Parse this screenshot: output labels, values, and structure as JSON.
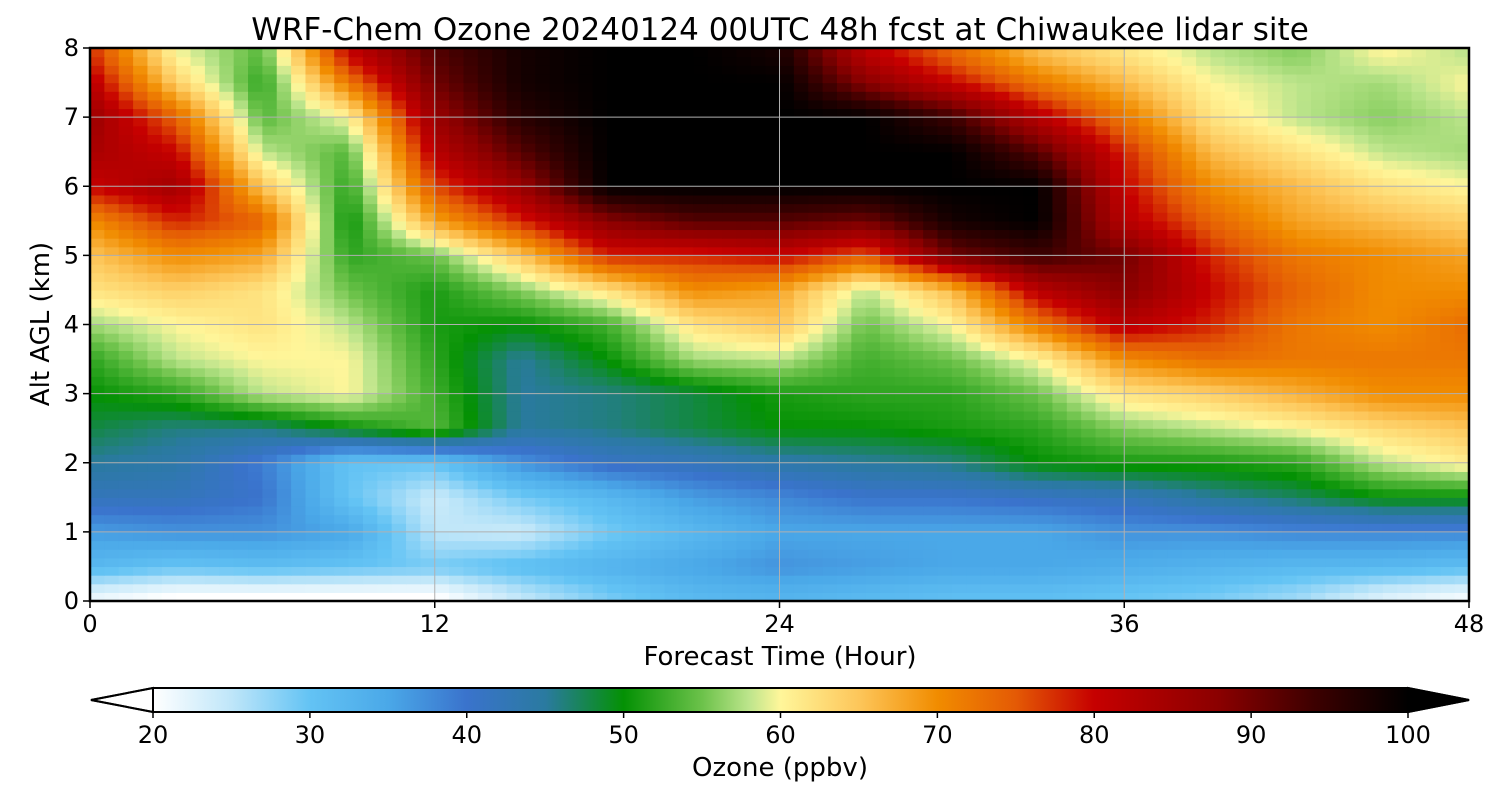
{
  "chart_data": {
    "type": "heatmap",
    "title": "WRF-Chem Ozone  20240124 00UTC 48h fcst at Chiwaukee lidar site",
    "xlabel": "Forecast Time (Hour)",
    "ylabel": "Alt AGL (km)",
    "xlim": [
      0,
      48
    ],
    "ylim": [
      0,
      8
    ],
    "x_ticks": [
      0,
      12,
      24,
      36,
      48
    ],
    "y_ticks": [
      0,
      1,
      2,
      3,
      4,
      5,
      6,
      7,
      8
    ],
    "grid": true,
    "colorbar": {
      "label": "Ozone  (ppbv)",
      "min": 20,
      "max": 100,
      "ticks": [
        20,
        30,
        40,
        50,
        60,
        70,
        80,
        90,
        100
      ],
      "extend": "both",
      "stops": [
        {
          "value": 20,
          "color": "#ffffff"
        },
        {
          "value": 25,
          "color": "#bfe6f9"
        },
        {
          "value": 30,
          "color": "#63c3f4"
        },
        {
          "value": 35,
          "color": "#4aa8e8"
        },
        {
          "value": 40,
          "color": "#3a73cc"
        },
        {
          "value": 45,
          "color": "#2a7aa0"
        },
        {
          "value": 50,
          "color": "#049104"
        },
        {
          "value": 55,
          "color": "#6cc24a"
        },
        {
          "value": 58,
          "color": "#bde58c"
        },
        {
          "value": 60,
          "color": "#fff69a"
        },
        {
          "value": 65,
          "color": "#fdc65a"
        },
        {
          "value": 70,
          "color": "#f18c00"
        },
        {
          "value": 75,
          "color": "#e45a05"
        },
        {
          "value": 80,
          "color": "#c60000"
        },
        {
          "value": 88,
          "color": "#8a0000"
        },
        {
          "value": 94,
          "color": "#3d0000"
        },
        {
          "value": 100,
          "color": "#000000"
        }
      ]
    },
    "x": [
      0,
      3,
      6,
      9,
      12,
      15,
      18,
      21,
      24,
      27,
      30,
      33,
      36,
      39,
      42,
      45,
      48
    ],
    "y": [
      0.1,
      0.5,
      1.0,
      1.5,
      2.0,
      2.5,
      3.0,
      3.5,
      4.0,
      4.5,
      5.0,
      5.5,
      6.0,
      6.5,
      7.0,
      7.5,
      7.9
    ],
    "z": [
      [
        22,
        20,
        20,
        20,
        20,
        25,
        29,
        32,
        33,
        32,
        31,
        31,
        30,
        29,
        27,
        23,
        21
      ],
      [
        32,
        30,
        31,
        30,
        29,
        31,
        33,
        35,
        37,
        36,
        35,
        35,
        34,
        33,
        32,
        32,
        31
      ],
      [
        36,
        37,
        37,
        35,
        25,
        24,
        29,
        32,
        35,
        35,
        35,
        35,
        37,
        37,
        38,
        38,
        38
      ],
      [
        42,
        42,
        40,
        30,
        24,
        29,
        32,
        36,
        38,
        40,
        40,
        41,
        42,
        45,
        47,
        50,
        50
      ],
      [
        45,
        44,
        39,
        30,
        30,
        37,
        41,
        42,
        44,
        45,
        46,
        50,
        51,
        51,
        52,
        58,
        61
      ],
      [
        48,
        46,
        46,
        50,
        54,
        45,
        46,
        48,
        50,
        50,
        51,
        52,
        56,
        58,
        60,
        63,
        65
      ],
      [
        50,
        52,
        58,
        60,
        53,
        45,
        46,
        48,
        51,
        52,
        52,
        55,
        62,
        64,
        67,
        70,
        70
      ],
      [
        52,
        58,
        60,
        60,
        52,
        45,
        50,
        57,
        58,
        53,
        55,
        60,
        70,
        73,
        72,
        72,
        72
      ],
      [
        57,
        60,
        62,
        58,
        51,
        50,
        53,
        62,
        65,
        55,
        60,
        72,
        82,
        78,
        72,
        70,
        73
      ],
      [
        62,
        64,
        62,
        55,
        51,
        56,
        62,
        70,
        68,
        58,
        66,
        82,
        88,
        80,
        74,
        70,
        70
      ],
      [
        65,
        70,
        68,
        52,
        55,
        65,
        78,
        78,
        80,
        75,
        90,
        94,
        90,
        78,
        72,
        70,
        68
      ],
      [
        70,
        78,
        74,
        50,
        68,
        78,
        88,
        92,
        92,
        90,
        98,
        100,
        82,
        74,
        68,
        66,
        64
      ],
      [
        80,
        85,
        65,
        52,
        76,
        86,
        100,
        100,
        100,
        100,
        100,
        100,
        80,
        70,
        66,
        62,
        60
      ],
      [
        84,
        80,
        58,
        54,
        82,
        92,
        100,
        100,
        100,
        100,
        100,
        92,
        78,
        66,
        62,
        58,
        57
      ],
      [
        86,
        74,
        54,
        60,
        86,
        96,
        100,
        100,
        100,
        100,
        94,
        82,
        72,
        62,
        58,
        56,
        58
      ],
      [
        82,
        64,
        52,
        72,
        90,
        98,
        100,
        100,
        100,
        88,
        80,
        72,
        66,
        60,
        58,
        57,
        60
      ],
      [
        78,
        60,
        54,
        80,
        92,
        98,
        100,
        100,
        98,
        82,
        74,
        66,
        62,
        58,
        56,
        60,
        58
      ]
    ]
  }
}
